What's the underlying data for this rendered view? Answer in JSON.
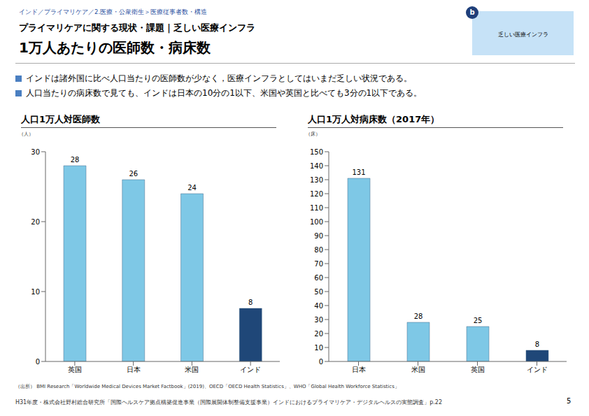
{
  "header": {
    "breadcrumb": "インド／プライマリケア／2.医療・公衆衛生＞医療従事者数・構造",
    "section": "プライマリケアに関する現状・課題｜乏しい医療インフラ",
    "title": "1万人あたりの医師数・病床数",
    "badge_letter": "b",
    "badge_text": "乏しい医療インフラ"
  },
  "bullets": [
    "インドは諸外国に比べ人口当たりの医師数が少なく，医療インフラとしてはいまだ乏しい状況である。",
    "人口当たりの病床数で見ても、インドは日本の10分の1以下、米国や英国と比べても3分の1以下である。"
  ],
  "chart_data": [
    {
      "type": "bar",
      "title": "人口1万人対医師数",
      "unit": "（人）",
      "categories": [
        "英国",
        "日本",
        "米国",
        "インド"
      ],
      "values": [
        28,
        26,
        24,
        7.6
      ],
      "value_labels": [
        "28",
        "26",
        "24",
        "8"
      ],
      "colors": [
        "#7ec8e6",
        "#7ec8e6",
        "#7ec8e6",
        "#1f4778"
      ],
      "ylim": [
        0,
        30
      ],
      "yticks": [
        0,
        10,
        20,
        30
      ],
      "grid": false,
      "data_labels": true
    },
    {
      "type": "bar",
      "title": "人口1万人対病床数（2017年）",
      "unit": "（床）",
      "categories": [
        "日本",
        "米国",
        "英国",
        "インド"
      ],
      "values": [
        131,
        28,
        25,
        8
      ],
      "colors": [
        "#7ec8e6",
        "#7ec8e6",
        "#7ec8e6",
        "#1f4778"
      ],
      "ylim": [
        0,
        150
      ],
      "yticks": [
        0,
        10,
        20,
        30,
        40,
        50,
        60,
        70,
        80,
        90,
        100,
        110,
        120,
        130,
        140,
        150
      ],
      "grid": false,
      "data_labels": true
    }
  ],
  "source": "（出所） BMI Research「Worldwide Medical Devices Market Factbook」(2019)、OECD「OECD Health Statistics」、WHO「Global Health Workforce Statistics」",
  "footer": "H31年度・株式会社野村総合研究所「国際ヘルスケア拠点構築促進事業（国際展開体制整備支援事業）インドにおけるプライマリケア・デジタルヘルスの実態調査」p.22",
  "page_number": "5"
}
